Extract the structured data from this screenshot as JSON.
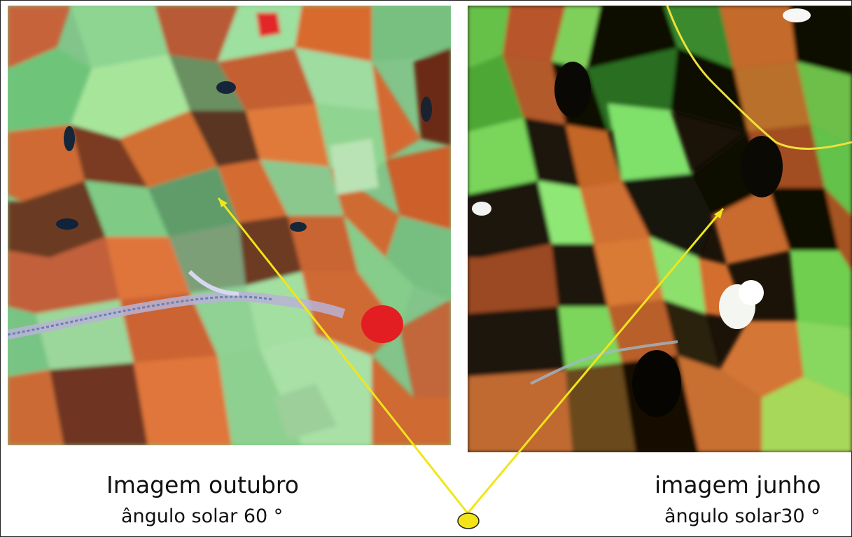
{
  "left_image": {
    "title": "Imagem outubro",
    "subtitle": "ângulo solar 60 °",
    "description_icon": "satellite-image-false-color"
  },
  "right_image": {
    "title": "imagem junho",
    "subtitle": "ângulo solar30 °",
    "description_icon": "satellite-image-false-color"
  },
  "colors": {
    "pointer": "#f2e51a",
    "marker_fill": "#f3e41a",
    "vegetation_light": "#7fd37e",
    "soil_orange": "#d8682e",
    "shadow_dark": "#1b1208",
    "road_yellow": "#e9e43a"
  }
}
